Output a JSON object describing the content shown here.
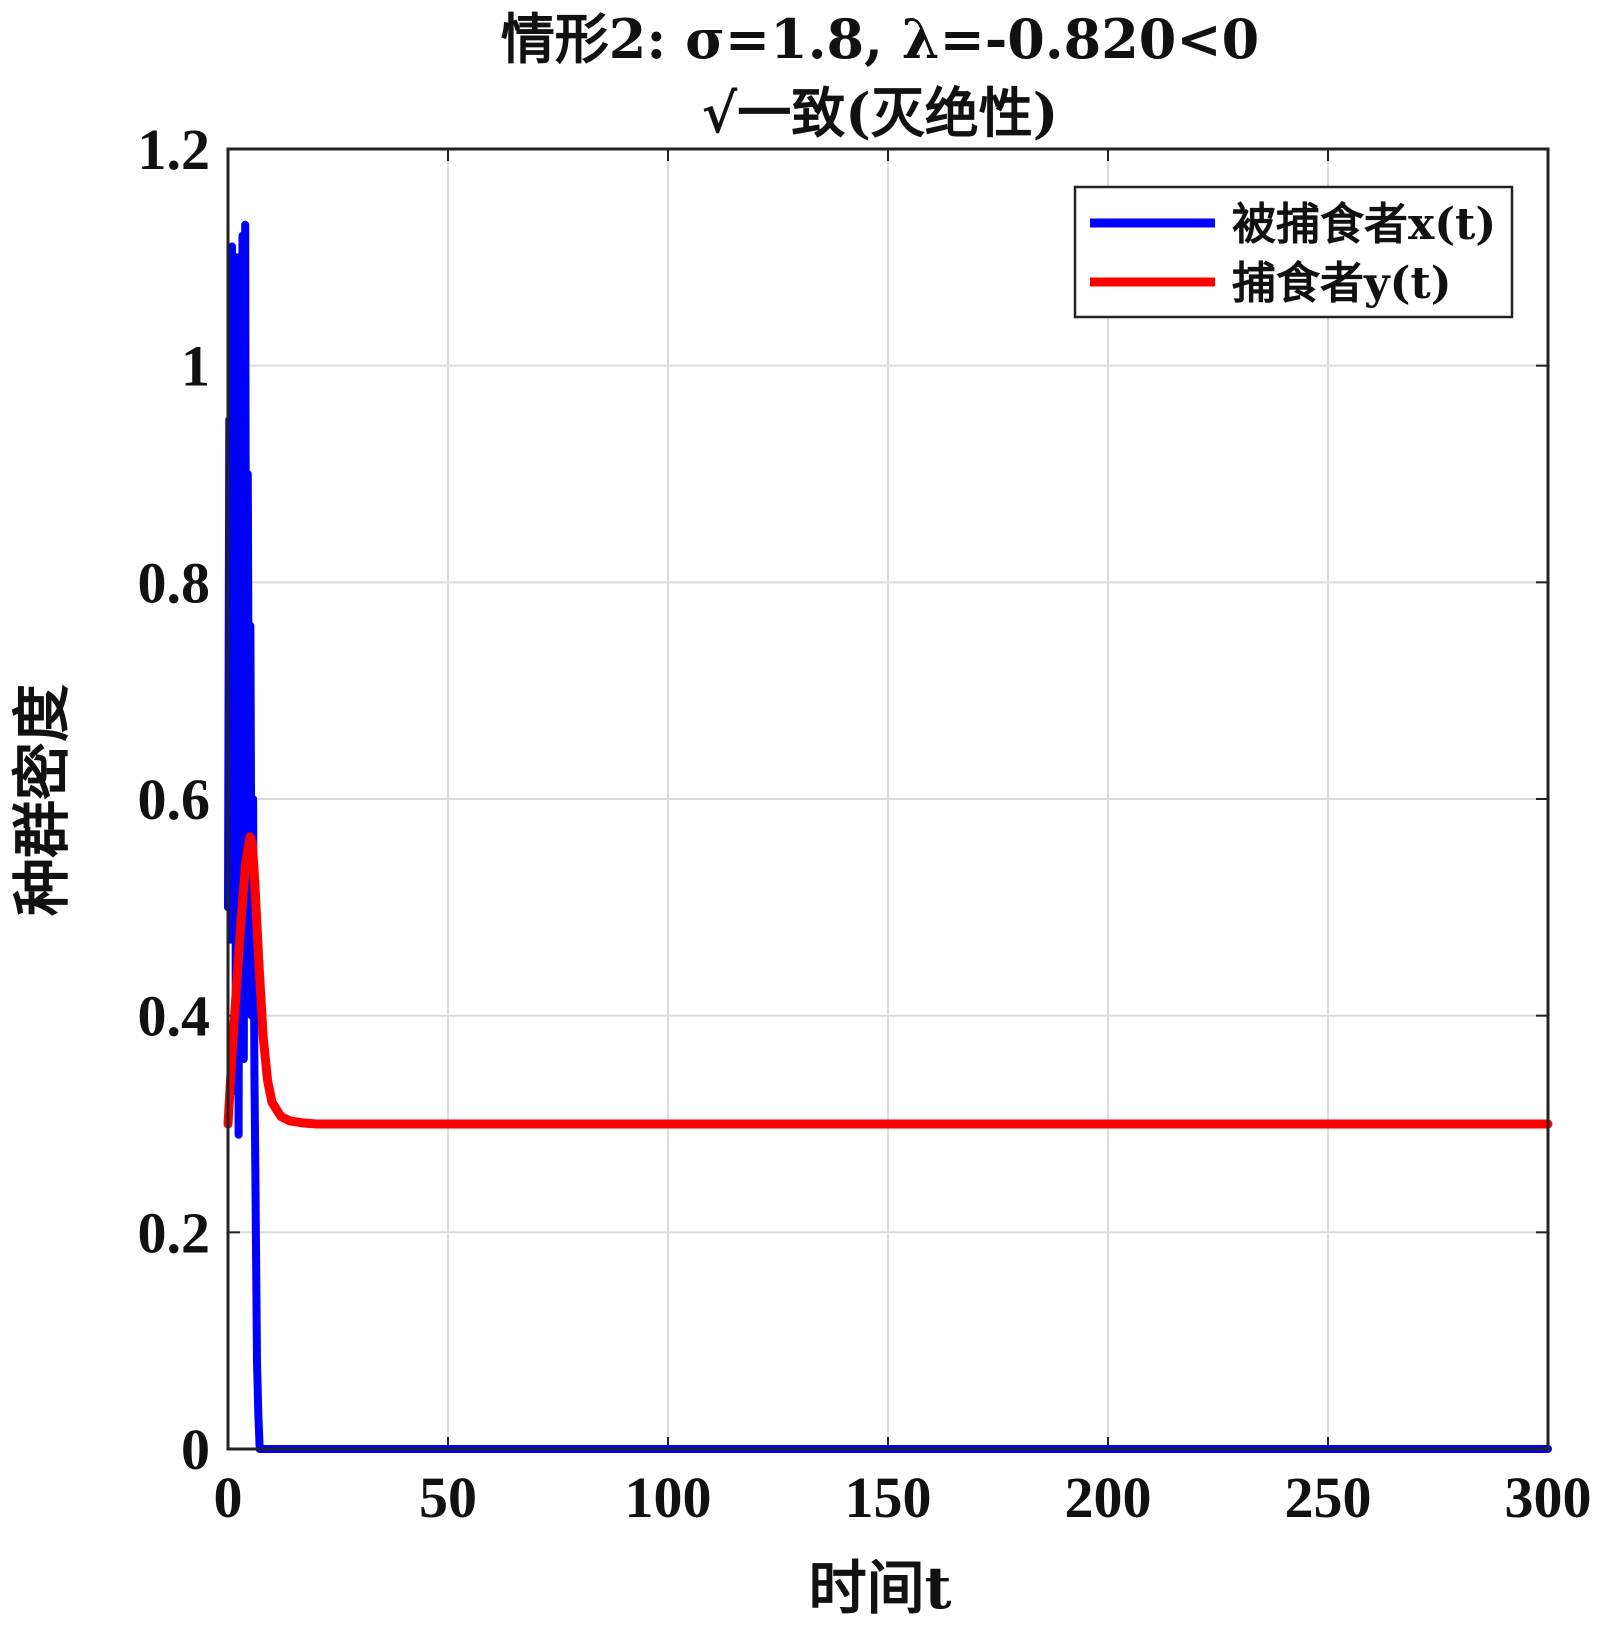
{
  "chart_data": {
    "type": "line",
    "title": [
      "情形2:  σ=1.8, λ=-0.820<0",
      "√一致(灭绝性)"
    ],
    "xlabel": "时间t",
    "ylabel": "种群密度",
    "xlim": [
      0,
      300
    ],
    "ylim": [
      0,
      1.2
    ],
    "x_ticks": [
      "0",
      "50",
      "100",
      "150",
      "200",
      "250",
      "300"
    ],
    "y_ticks": [
      "0",
      "0.2",
      "0.4",
      "0.6",
      "0.8",
      "1",
      "1.2"
    ],
    "grid": true,
    "legend_position": "top-right",
    "series": [
      {
        "name": "被捕食者x(t)",
        "color": "#0000ff",
        "x": [
          0,
          0.3,
          0.6,
          0.9,
          1.2,
          1.5,
          1.8,
          2.1,
          2.4,
          2.7,
          3.0,
          3.3,
          3.6,
          3.9,
          4.2,
          4.5,
          4.8,
          5.1,
          5.4,
          5.7,
          6.0,
          6.3,
          6.6,
          6.9,
          7.2,
          8,
          10,
          20,
          50,
          100,
          150,
          200,
          250,
          300
        ],
        "y": [
          0.5,
          0.95,
          0.47,
          1.11,
          0.55,
          1.05,
          0.33,
          1.1,
          0.29,
          1.04,
          0.5,
          1.12,
          0.36,
          1.13,
          0.45,
          0.9,
          0.55,
          0.76,
          0.4,
          0.6,
          0.35,
          0.22,
          0.08,
          0.03,
          0.0,
          0.0,
          0.0,
          0.0,
          0.0,
          0.0,
          0.0,
          0.0,
          0.0,
          0.0
        ]
      },
      {
        "name": "捕食者y(t)",
        "color": "#ff0000",
        "x": [
          0,
          1,
          2,
          3,
          4,
          5,
          5.5,
          6,
          7,
          8,
          9,
          10,
          12,
          14,
          17,
          20,
          25,
          30,
          50,
          100,
          150,
          200,
          250,
          300
        ],
        "y": [
          0.3,
          0.37,
          0.43,
          0.49,
          0.54,
          0.565,
          0.56,
          0.53,
          0.45,
          0.38,
          0.34,
          0.32,
          0.307,
          0.303,
          0.301,
          0.3,
          0.3,
          0.3,
          0.3,
          0.3,
          0.3,
          0.3,
          0.3,
          0.3
        ]
      }
    ]
  }
}
